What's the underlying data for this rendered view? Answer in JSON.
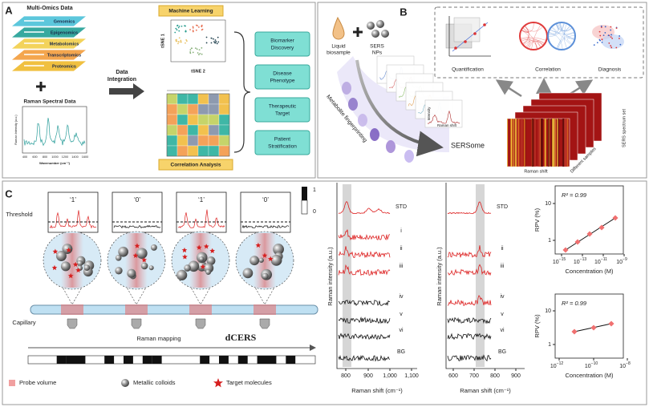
{
  "panel_a": {
    "label": "A",
    "multi_omics_title": "Multi-Omics Data",
    "omics_layers": [
      "Genomics",
      "Epigenomics",
      "Metabolomics",
      "Transcriptomics",
      "Proteomics"
    ],
    "raman_title": "Raman Spectral Data",
    "raman_y_label": "Raman Intensity (a.u.)",
    "raman_x_label": "Wavenumber (cm⁻¹)",
    "raman_x_ticks": [
      "400",
      "600",
      "800",
      "1000",
      "1200",
      "1400",
      "1600"
    ],
    "integration_label": [
      "Data",
      "Integration"
    ],
    "ml_title": "Machine Learning",
    "tsne_1": "tSNE 1",
    "tsne_2": "tSNE 2",
    "correlation_title": "Correlation Analysis",
    "outcomes": [
      [
        "Biomarker",
        "Discovery"
      ],
      [
        "Disease",
        "Phenotype"
      ],
      [
        "Therapeutic",
        "Target"
      ],
      [
        "Patient",
        "Stratification"
      ]
    ]
  },
  "panel_b": {
    "label": "B",
    "liquid_biosample": [
      "Liquid",
      "biosample"
    ],
    "sers_nps": [
      "SERS",
      "NPs"
    ],
    "fingerprinting": "Metabolite fingerprinting",
    "card_intensity": "Intensity",
    "card_raman_shift": "Raman shift",
    "sersome": "SERSome",
    "applications": [
      "Quantification",
      "Correlation",
      "Diagnosis"
    ],
    "heatmap_x_label": "Raman shift",
    "heatmap_depth_label": "Different samples",
    "heatmap_set_label": "SERS spectrum set"
  },
  "panel_c": {
    "label": "C",
    "threshold_states": [
      "‘1’",
      "‘0’",
      "‘1’",
      "‘0’"
    ],
    "colorbar_labels": [
      "1",
      "0"
    ],
    "threshold_label": "Threshold",
    "capillary_label": "Capillary",
    "mapping_label": "Raman mapping",
    "method_name": "dCERS",
    "legend": [
      "Probe volume",
      "Metallic colloids",
      "Target molecules"
    ],
    "spectra_y_label": "Raman intensity (a.u.)",
    "spectra_x_label": "Raman shift (cm⁻¹)",
    "spectra_1": {
      "traces": [
        "STD",
        "i",
        "ii",
        "iii",
        "iv",
        "v",
        "vi",
        "BG"
      ],
      "x_ticks": [
        "800",
        "900",
        "1,000",
        "1,100"
      ]
    },
    "spectra_2": {
      "traces": [
        "STD",
        "ii",
        "iii",
        "iv",
        "v",
        "vi",
        "BG"
      ],
      "x_ticks": [
        "600",
        "700",
        "800",
        "900"
      ]
    },
    "calibration_1": {
      "r2": "R² = 0.99",
      "y_label": "RPV (%)",
      "y_ticks": [
        "10",
        "1"
      ],
      "x_ticks": [
        [
          "10",
          "−15"
        ],
        [
          "10",
          "−13"
        ],
        [
          "10",
          "−11"
        ],
        [
          "10",
          "−9"
        ]
      ],
      "x_label": "Concentration (M)"
    },
    "calibration_2": {
      "r2": "R² = 0.99",
      "y_label": "RPV (%)",
      "y_ticks": [
        "10",
        "1"
      ],
      "x_ticks": [
        [
          "10",
          "−12"
        ],
        [
          "10",
          "−10"
        ],
        [
          "10",
          "−8"
        ]
      ],
      "x_label": "Concentration (M)"
    }
  }
}
